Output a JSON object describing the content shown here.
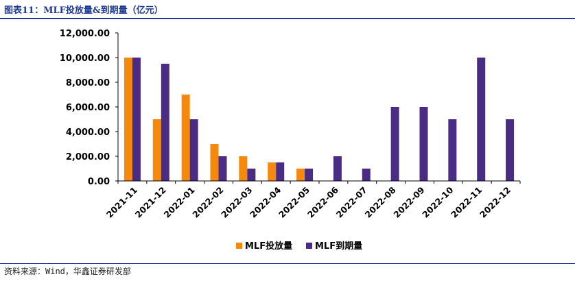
{
  "header": {
    "title": "图表11：MLF投放量&到期量（亿元）"
  },
  "footer": {
    "source": "资料来源：Wind，华鑫证券研发部"
  },
  "colors": {
    "issued": "#F5890C",
    "matured": "#4B2C85",
    "axis": "#000000",
    "rule": "#1f3a93"
  },
  "chart_data": {
    "type": "bar",
    "title": "MLF投放量&到期量（亿元）",
    "xlabel": "",
    "ylabel": "",
    "ylim": [
      0,
      12000
    ],
    "yticks": [
      "12,000.00",
      "10,000.00",
      "8,000.00",
      "6,000.00",
      "4,000.00",
      "2,000.00",
      "0.00"
    ],
    "grid": false,
    "legend": "bottom-center",
    "categories": [
      "2021-11",
      "2021-12",
      "2022-01",
      "2022-02",
      "2022-03",
      "2022-04",
      "2022-05",
      "2022-06",
      "2022-07",
      "2022-08",
      "2022-09",
      "2022-10",
      "2022-11",
      "2022-12"
    ],
    "series": [
      {
        "name": "MLF投放量",
        "color": "#F5890C",
        "values": [
          10000,
          5000,
          7000,
          3000,
          2000,
          1500,
          1000,
          0,
          0,
          0,
          0,
          0,
          0,
          0
        ]
      },
      {
        "name": "MLF到期量",
        "color": "#4B2C85",
        "values": [
          10000,
          9500,
          5000,
          2000,
          1000,
          1500,
          1000,
          2000,
          1000,
          6000,
          6000,
          5000,
          10000,
          5000
        ]
      }
    ]
  }
}
